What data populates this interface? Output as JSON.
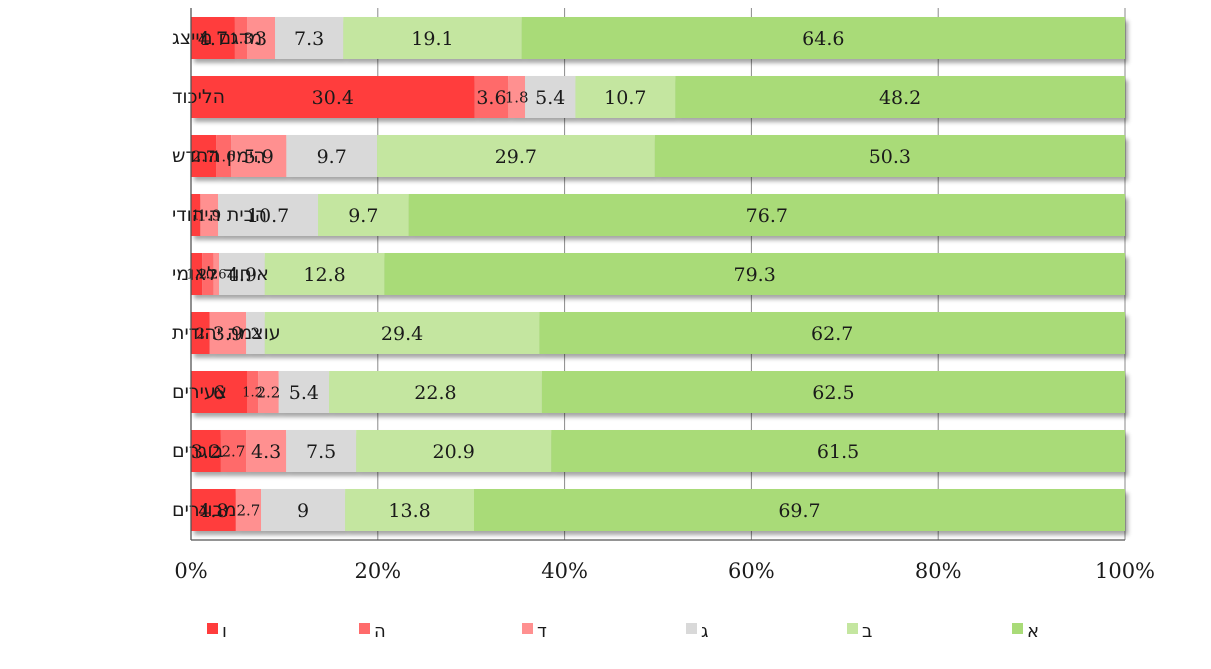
{
  "chart_data": {
    "type": "bar",
    "orientation": "horizontal",
    "stacked": "percent",
    "title": "",
    "xlabel": "",
    "ylabel": "",
    "xlim": [
      0,
      100
    ],
    "x_ticks": [
      "0%",
      "20%",
      "40%",
      "60%",
      "80%",
      "100%"
    ],
    "grid": true,
    "legend_position": "bottom",
    "categories": [
      "מדגם מייצג",
      "הליכוד",
      "הימין החדש",
      "הבית היהודי",
      "איחוד לאומי",
      "עוצמה יהודית",
      "צעירים",
      "בוגרים",
      "מבוגרים"
    ],
    "series": [
      {
        "name": "ו",
        "color": "#ff3c3c",
        "values": [
          4.7,
          30.4,
          2.7,
          1,
          1.2,
          2,
          6,
          3.2,
          4.8
        ],
        "labels": [
          "4.7",
          "30.4",
          "2.7",
          "1",
          "1.2",
          "2",
          "6",
          "3.2",
          "4.8"
        ]
      },
      {
        "name": "ה",
        "color": "#ff6b6b",
        "values": [
          1.3,
          3.6,
          1.6,
          0,
          1.2,
          0,
          1.2,
          2.7,
          0
        ],
        "labels": [
          "1.3",
          "3.6",
          "1.6",
          "",
          "1.2",
          "",
          "1.2",
          "2.7",
          ""
        ]
      },
      {
        "name": "ד",
        "color": "#ff9090",
        "values": [
          3,
          1.8,
          5.9,
          1.9,
          0.6,
          3.9,
          2.2,
          4.3,
          2.7
        ],
        "labels": [
          "3",
          "1.8",
          "5.9",
          "1.9",
          "0.6",
          "3.9",
          "2.2",
          "4.3",
          "2.7"
        ]
      },
      {
        "name": "ג",
        "color": "#d9d9d9",
        "values": [
          7.3,
          5.4,
          9.7,
          10.7,
          4.9,
          2,
          5.4,
          7.5,
          9
        ],
        "labels": [
          "7.3",
          "5.4",
          "9.7",
          "10.7",
          "4.9",
          "2",
          "5.4",
          "7.5",
          "9"
        ]
      },
      {
        "name": "ב",
        "color": "#c4e6a0",
        "values": [
          19.1,
          10.7,
          29.7,
          9.7,
          12.8,
          29.4,
          22.8,
          20.9,
          13.8
        ],
        "labels": [
          "19.1",
          "10.7",
          "29.7",
          "9.7",
          "12.8",
          "29.4",
          "22.8",
          "20.9",
          "13.8"
        ]
      },
      {
        "name": "א",
        "color": "#a9db78",
        "values": [
          64.6,
          48.2,
          50.3,
          76.7,
          79.3,
          62.7,
          62.5,
          61.5,
          69.7
        ],
        "labels": [
          "64.6",
          "48.2",
          "50.3",
          "76.7",
          "79.3",
          "62.7",
          "62.5",
          "61.5",
          "69.7"
        ]
      }
    ]
  }
}
